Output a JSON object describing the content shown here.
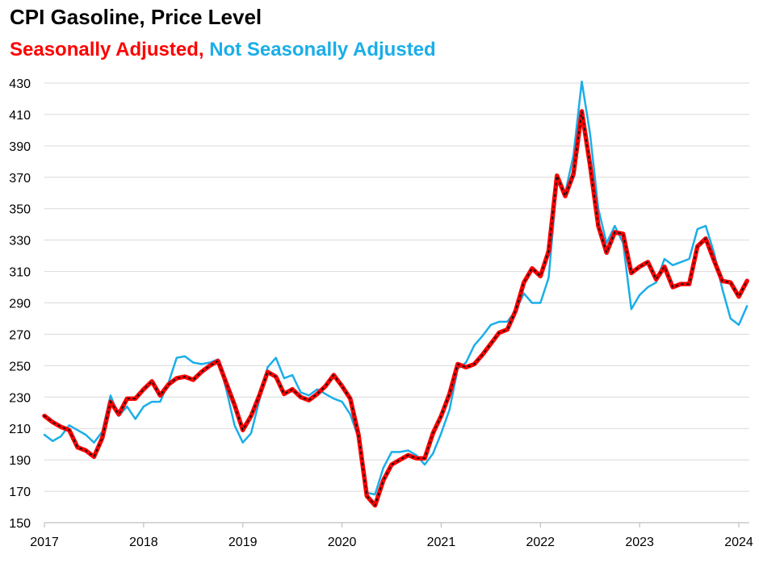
{
  "chart_data": {
    "type": "line",
    "title": "CPI Gasoline, Price Level",
    "subtitle_parts": [
      "Seasonally Adjusted,",
      "Not Seasonally Adjusted"
    ],
    "x_tick_labels": [
      "2017",
      "2018",
      "2019",
      "2020",
      "2021",
      "2022",
      "2023",
      "2024"
    ],
    "y_tick_labels": [
      "150",
      "170",
      "190",
      "210",
      "230",
      "250",
      "270",
      "290",
      "310",
      "330",
      "350",
      "370",
      "390",
      "410",
      "430"
    ],
    "ylim": [
      150,
      430
    ],
    "xlim": [
      0,
      85
    ],
    "x_start": "2017-01",
    "series": [
      {
        "name": "Seasonally Adjusted",
        "color": "#ff0000",
        "values": [
          218,
          214,
          211,
          209,
          198,
          196,
          192,
          204,
          227,
          219,
          229,
          229,
          235,
          240,
          231,
          238,
          242,
          243,
          241,
          246,
          250,
          253,
          239,
          225,
          209,
          218,
          231,
          246,
          243,
          232,
          235,
          230,
          228,
          232,
          237,
          244,
          237,
          229,
          206,
          167,
          161,
          177,
          187,
          190,
          193,
          191,
          191,
          207,
          218,
          232,
          251,
          249,
          251,
          257,
          264,
          271,
          273,
          285,
          303,
          312,
          307,
          323,
          371,
          358,
          372,
          412,
          378,
          339,
          322,
          335,
          334,
          309,
          313,
          316,
          305,
          313,
          300,
          302,
          302,
          326,
          331,
          317,
          304,
          303,
          294,
          304
        ]
      },
      {
        "name": "Not Seasonally Adjusted",
        "color": "#1aaee8",
        "values": [
          206,
          202,
          205,
          212,
          209,
          206,
          201,
          208,
          231,
          218,
          224,
          216,
          224,
          227,
          227,
          239,
          255,
          256,
          252,
          251,
          252,
          254,
          235,
          212,
          201,
          207,
          228,
          249,
          255,
          242,
          244,
          233,
          231,
          235,
          232,
          229,
          227,
          219,
          204,
          169,
          168,
          185,
          195,
          195,
          196,
          193,
          187,
          194,
          207,
          222,
          248,
          252,
          263,
          269,
          276,
          278,
          278,
          285,
          296,
          290,
          290,
          306,
          367,
          360,
          384,
          431,
          398,
          350,
          328,
          339,
          328,
          286,
          295,
          300,
          303,
          318,
          314,
          316,
          318,
          337,
          339,
          322,
          299,
          280,
          276,
          288
        ]
      }
    ]
  }
}
